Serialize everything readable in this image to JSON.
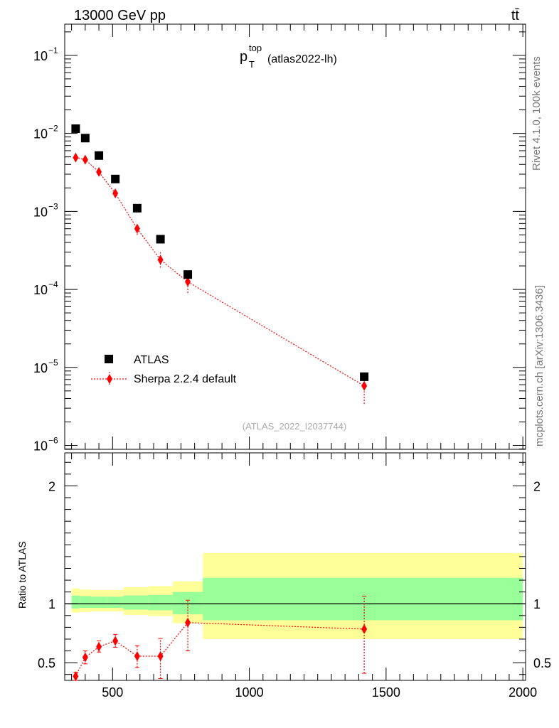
{
  "header": {
    "energy": "13000 GeV pp",
    "process": "tt̄"
  },
  "side_text": {
    "rivet": "Rivet 4.1.0,  100k events",
    "mcplots": "mcplots.cern.ch [arXiv:1306.3436]"
  },
  "chart_data": [
    {
      "type": "scatter",
      "title": "p_T^top (atlas2022-lh)",
      "title_main": "p",
      "title_sub": "T",
      "title_sup": "top",
      "title_rest": "(atlas2022-lh)",
      "analysis_id": "(ATLAS_2022_I2037744)",
      "xlim": [
        325,
        2010
      ],
      "ylim_log": [
        -6.05,
        -0.6
      ],
      "scale": "log",
      "y_ticks": [
        {
          "value": -1,
          "base": "10",
          "exp": "−1"
        },
        {
          "value": -2,
          "base": "10",
          "exp": "−2"
        },
        {
          "value": -3,
          "base": "10",
          "exp": "−3"
        },
        {
          "value": -4,
          "base": "10",
          "exp": "−4"
        },
        {
          "value": -5,
          "base": "10",
          "exp": "−5"
        },
        {
          "value": -6,
          "base": "10",
          "exp": "−6"
        }
      ],
      "legend": [
        "ATLAS",
        "Sherpa 2.2.4 default"
      ],
      "series": [
        {
          "name": "ATLAS",
          "marker": "square",
          "color": "#000000",
          "x": [
            365,
            400,
            450,
            510,
            590,
            675,
            775,
            1420
          ],
          "y": [
            0.0115,
            0.0087,
            0.0052,
            0.0026,
            0.0011,
            0.00044,
            0.000155,
            7.6e-06
          ]
        },
        {
          "name": "Sherpa 2.2.4 default",
          "marker": "diamond",
          "color": "#ff0000",
          "x": [
            365,
            400,
            450,
            510,
            590,
            675,
            775,
            1420
          ],
          "y": [
            0.0049,
            0.0046,
            0.0032,
            0.0017,
            0.0006,
            0.00024,
            0.000125,
            5.8e-06
          ],
          "y_low": [
            0.0045,
            0.0042,
            0.0029,
            0.0015,
            0.0005,
            0.00019,
            9e-05,
            3.4e-06
          ],
          "y_high": [
            0.0053,
            0.005,
            0.0035,
            0.0019,
            0.0007,
            0.0003,
            0.000158,
            8.2e-06
          ]
        }
      ]
    },
    {
      "type": "scatter",
      "ylabel": "Ratio to ATLAS",
      "xlim": [
        325,
        2010
      ],
      "ylim": [
        0.35,
        2.28
      ],
      "x_ticks": [
        500,
        1000,
        1500,
        2000
      ],
      "y_ticks": [
        0.5,
        1,
        2
      ],
      "bins": [
        {
          "x0": 350,
          "x1": 380,
          "yellow": [
            0.925,
            1.13
          ],
          "green": [
            0.96,
            1.07
          ]
        },
        {
          "x0": 380,
          "x1": 420,
          "yellow": [
            0.93,
            1.12
          ],
          "green": [
            0.965,
            1.065
          ]
        },
        {
          "x0": 420,
          "x1": 480,
          "yellow": [
            0.935,
            1.115
          ],
          "green": [
            0.965,
            1.06
          ]
        },
        {
          "x0": 480,
          "x1": 540,
          "yellow": [
            0.935,
            1.115
          ],
          "green": [
            0.965,
            1.06
          ]
        },
        {
          "x0": 540,
          "x1": 630,
          "yellow": [
            0.905,
            1.14
          ],
          "green": [
            0.95,
            1.07
          ]
        },
        {
          "x0": 630,
          "x1": 720,
          "yellow": [
            0.895,
            1.15
          ],
          "green": [
            0.945,
            1.075
          ]
        },
        {
          "x0": 720,
          "x1": 830,
          "yellow": [
            0.835,
            1.19
          ],
          "green": [
            0.91,
            1.1
          ]
        },
        {
          "x0": 830,
          "x1": 2000,
          "yellow": [
            0.7,
            1.43
          ],
          "green": [
            0.86,
            1.22
          ]
        }
      ],
      "series": [
        {
          "name": "Sherpa 2.2.4 default",
          "color": "#ff0000",
          "x": [
            365,
            400,
            450,
            510,
            590,
            675,
            775,
            1420
          ],
          "y": [
            0.385,
            0.545,
            0.635,
            0.685,
            0.555,
            0.555,
            0.84,
            0.785
          ],
          "y_low": [
            0.35,
            0.49,
            0.59,
            0.63,
            0.46,
            0.365,
            0.6,
            0.41
          ],
          "y_high": [
            0.42,
            0.6,
            0.685,
            0.74,
            0.645,
            0.705,
            1.03,
            1.065
          ]
        }
      ]
    }
  ]
}
